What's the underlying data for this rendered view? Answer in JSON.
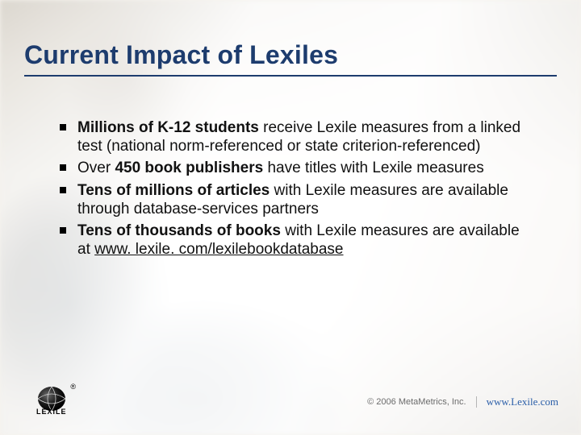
{
  "slide": {
    "title": "Current Impact of Lexiles",
    "title_color": "#1d3c6e",
    "underline_color": "#1d3c6e",
    "background_color": "#ffffff",
    "bullets": [
      {
        "segments": [
          {
            "text": "Millions of K-12 students",
            "bold": true
          },
          {
            "text": " receive Lexile measures from a linked test (national norm-referenced or state criterion-referenced)"
          }
        ]
      },
      {
        "segments": [
          {
            "text": "Over "
          },
          {
            "text": "450 book publishers",
            "bold": true
          },
          {
            "text": " have titles with Lexile measures"
          }
        ]
      },
      {
        "segments": [
          {
            "text": "Tens of millions of articles",
            "bold": true
          },
          {
            "text": " with Lexile measures are available through database-services partners"
          }
        ]
      },
      {
        "segments": [
          {
            "text": "Tens of thousands of books",
            "bold": true
          },
          {
            "text": " with Lexile measures are available at "
          },
          {
            "text": "www. lexile. com/lexilebookdatabase",
            "link": true
          }
        ]
      }
    ],
    "body_fontsize": 19,
    "body_color": "#111111",
    "bullet_marker_color": "#000000"
  },
  "footer": {
    "logo_label": "LEXILE",
    "logo_registered": "®",
    "copyright": "© 2006 MetaMetrics, Inc.",
    "url": "www.Lexile.com",
    "copyright_color": "#6b6b6b",
    "url_color": "#2a5ea8"
  }
}
